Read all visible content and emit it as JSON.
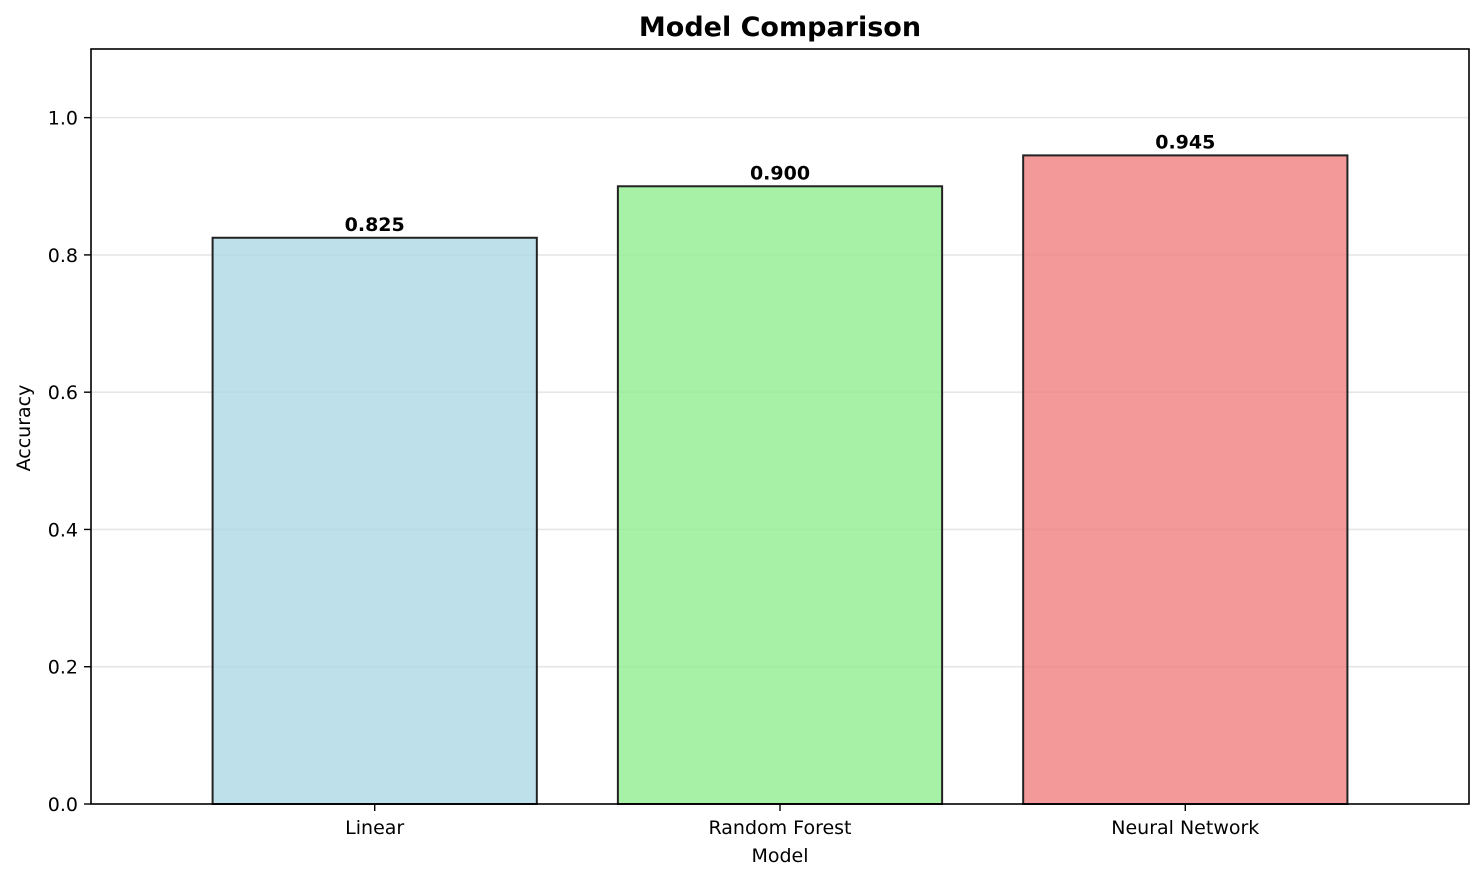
{
  "chart_data": {
    "type": "bar",
    "title": "Model Comparison",
    "xlabel": "Model",
    "ylabel": "Accuracy",
    "categories": [
      "Linear",
      "Random Forest",
      "Neural Network"
    ],
    "values": [
      0.825,
      0.9,
      0.945
    ],
    "data_labels": [
      "0.825",
      "0.900",
      "0.945"
    ],
    "ylim": [
      0,
      1.1
    ],
    "yticks": [
      0.0,
      0.2,
      0.4,
      0.6,
      0.8,
      1.0
    ],
    "ytick_labels": [
      "0.0",
      "0.2",
      "0.4",
      "0.6",
      "0.8",
      "1.0"
    ],
    "grid": "y",
    "colors": [
      "#add8e6",
      "#90ee90",
      "#f08080"
    ],
    "edge_color": "#222222",
    "grid_color": "#e6e6e6"
  }
}
